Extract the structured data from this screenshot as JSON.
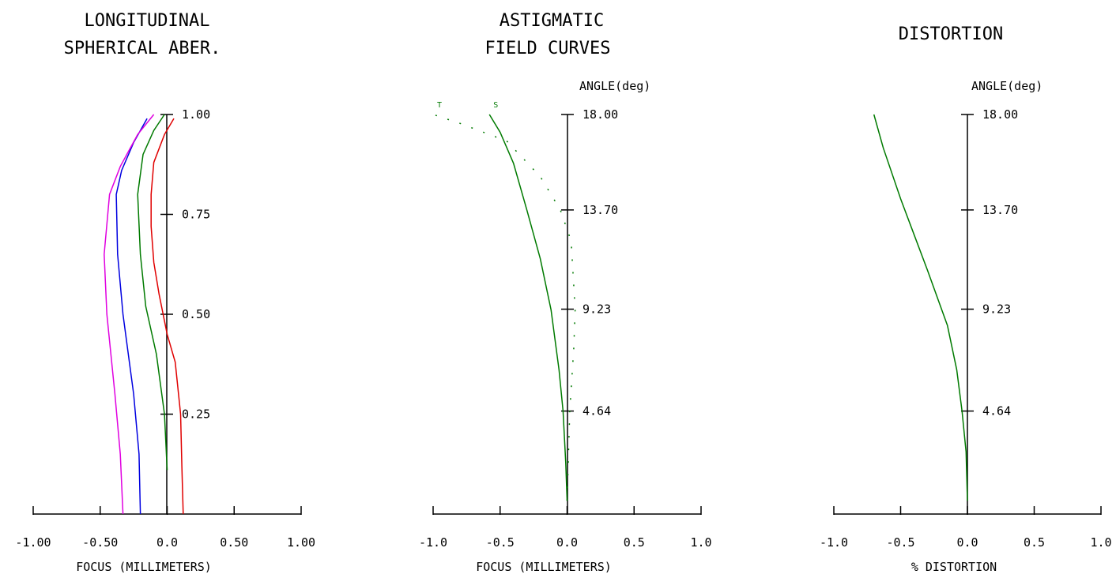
{
  "colors": {
    "red": "#e00000",
    "green": "#007a00",
    "blue": "#0000e0",
    "magenta": "#e000e0",
    "axis": "#000000"
  },
  "chart_data": [
    {
      "type": "line",
      "title": [
        "LONGITUDINAL",
        "SPHERICAL ABER."
      ],
      "xlabel": "FOCUS (MILLIMETERS)",
      "xlim": [
        -1.0,
        1.0
      ],
      "x_ticks": [
        "-1.00",
        "-0.50",
        "0.0",
        "0.50",
        "1.00"
      ],
      "x_tick_values": [
        -1.0,
        -0.5,
        0.0,
        0.5,
        1.0
      ],
      "ylim": [
        0,
        1.0
      ],
      "y_ticks": [
        "1.00",
        "0.75",
        "0.50",
        "0.25"
      ],
      "y_tick_values": [
        1.0,
        0.75,
        0.5,
        0.25
      ],
      "y_axis_title": "",
      "series": [
        {
          "color": "red",
          "style": "solid",
          "points": [
            [
              0.12,
              0
            ],
            [
              0.11,
              0.12
            ],
            [
              0.1,
              0.25
            ],
            [
              0.06,
              0.38
            ],
            [
              0.0,
              0.45
            ],
            [
              -0.06,
              0.55
            ],
            [
              -0.1,
              0.63
            ],
            [
              -0.12,
              0.72
            ],
            [
              -0.12,
              0.8
            ],
            [
              -0.1,
              0.88
            ],
            [
              -0.02,
              0.95
            ],
            [
              0.05,
              0.99
            ]
          ]
        },
        {
          "color": "green",
          "style": "solid",
          "points": [
            [
              0.0,
              0.11
            ],
            [
              -0.02,
              0.25
            ],
            [
              -0.08,
              0.4
            ],
            [
              -0.16,
              0.52
            ],
            [
              -0.2,
              0.65
            ],
            [
              -0.22,
              0.8
            ],
            [
              -0.18,
              0.9
            ],
            [
              -0.1,
              0.96
            ],
            [
              -0.02,
              1.0
            ]
          ]
        },
        {
          "color": "blue",
          "style": "solid",
          "points": [
            [
              -0.2,
              0
            ],
            [
              -0.21,
              0.15
            ],
            [
              -0.25,
              0.3
            ],
            [
              -0.33,
              0.5
            ],
            [
              -0.37,
              0.65
            ],
            [
              -0.38,
              0.8
            ],
            [
              -0.34,
              0.86
            ],
            [
              -0.25,
              0.93
            ],
            [
              -0.15,
              0.99
            ]
          ]
        },
        {
          "color": "magenta",
          "style": "solid",
          "points": [
            [
              -0.33,
              0
            ],
            [
              -0.35,
              0.15
            ],
            [
              -0.39,
              0.3
            ],
            [
              -0.45,
              0.5
            ],
            [
              -0.47,
              0.65
            ],
            [
              -0.43,
              0.8
            ],
            [
              -0.35,
              0.87
            ],
            [
              -0.22,
              0.95
            ],
            [
              -0.1,
              1.0
            ]
          ]
        }
      ]
    },
    {
      "type": "line",
      "title": [
        "ASTIGMATIC",
        "FIELD CURVES"
      ],
      "xlabel": "FOCUS (MILLIMETERS)",
      "xlim": [
        -1.0,
        1.0
      ],
      "x_ticks": [
        "-1.0",
        "-0.5",
        "0.0",
        "0.5",
        "1.0"
      ],
      "x_tick_values": [
        -1.0,
        -0.5,
        0.0,
        0.5,
        1.0
      ],
      "ylim": [
        0,
        18.0
      ],
      "y_ticks": [
        "18.00",
        "13.70",
        "9.23",
        "4.64"
      ],
      "y_tick_values": [
        18.0,
        13.7,
        9.23,
        4.64
      ],
      "y_axis_title": "ANGLE(deg)",
      "series": [
        {
          "name": "S",
          "color": "green",
          "style": "solid",
          "points": [
            [
              0.0,
              0.6
            ],
            [
              -0.01,
              2.3
            ],
            [
              -0.03,
              4.64
            ],
            [
              -0.06,
              6.5
            ],
            [
              -0.12,
              9.2
            ],
            [
              -0.2,
              11.5
            ],
            [
              -0.3,
              13.7
            ],
            [
              -0.4,
              15.8
            ],
            [
              -0.5,
              17.2
            ],
            [
              -0.58,
              18.0
            ]
          ]
        },
        {
          "name": "T",
          "color": "green",
          "style": "dotted",
          "points": [
            [
              0.0,
              0.6
            ],
            [
              0.02,
              4.64
            ],
            [
              0.05,
              7.5
            ],
            [
              0.06,
              9.23
            ],
            [
              0.03,
              12.3
            ],
            [
              -0.05,
              13.7
            ],
            [
              -0.2,
              15.2
            ],
            [
              -0.45,
              16.8
            ],
            [
              -0.8,
              17.6
            ],
            [
              -1.0,
              18.0
            ]
          ]
        }
      ]
    },
    {
      "type": "line",
      "title": [
        "DISTORTION"
      ],
      "xlabel": "% DISTORTION",
      "xlim": [
        -1.0,
        1.0
      ],
      "x_ticks": [
        "-1.0",
        "-0.5",
        "0.0",
        "0.5",
        "1.0"
      ],
      "x_tick_values": [
        -1.0,
        -0.5,
        0.0,
        0.5,
        1.0
      ],
      "ylim": [
        0,
        18.0
      ],
      "y_ticks": [
        "18.00",
        "13.70",
        "9.23",
        "4.64"
      ],
      "y_tick_values": [
        18.0,
        13.7,
        9.23,
        4.64
      ],
      "y_axis_title": "ANGLE(deg)",
      "series": [
        {
          "color": "green",
          "style": "solid",
          "points": [
            [
              0.0,
              0.6
            ],
            [
              -0.01,
              2.8
            ],
            [
              -0.04,
              4.64
            ],
            [
              -0.08,
              6.5
            ],
            [
              -0.15,
              8.5
            ],
            [
              -0.3,
              11.0
            ],
            [
              -0.4,
              12.6
            ],
            [
              -0.5,
              14.2
            ],
            [
              -0.63,
              16.5
            ],
            [
              -0.7,
              18.0
            ]
          ]
        }
      ]
    }
  ]
}
